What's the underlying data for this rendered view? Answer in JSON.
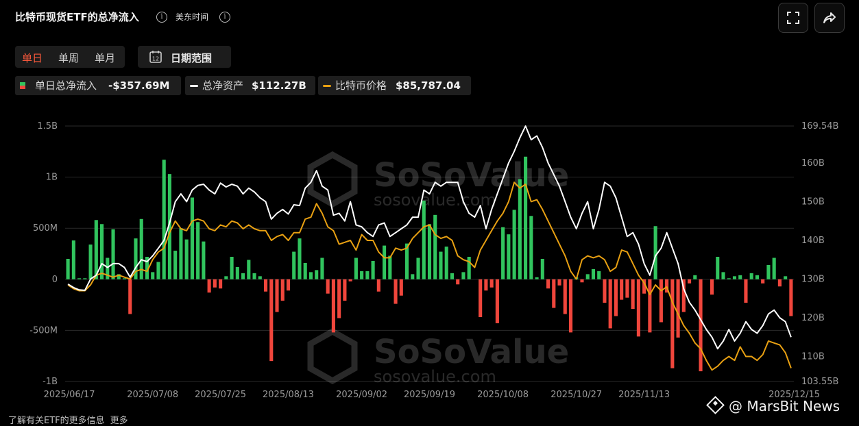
{
  "header": {
    "title": "比特币现货ETF的总净流入",
    "info_icon": "i",
    "timezone": "美东时间",
    "fullscreen_icon": "fullscreen-icon",
    "share_icon": "share-icon"
  },
  "periods": {
    "day": "单日",
    "week": "单周",
    "month": "单月",
    "active": "day"
  },
  "date_range": {
    "label": "日期范围",
    "icon_number": "12"
  },
  "legend": {
    "flow": {
      "name": "单日总净流入",
      "value": "-$357.69M"
    },
    "assets": {
      "name": "总净资产",
      "value": "$112.27B"
    },
    "price": {
      "name": "比特币价格",
      "value": "$85,787.04"
    }
  },
  "colors": {
    "inflow": "#31c45e",
    "outflow": "#f0463c",
    "assets_line": "#ffffff",
    "price_line": "#e8a012",
    "active_period": "#ff5a3c",
    "grid": "#2a2a2a"
  },
  "watermark": {
    "brand": "SoSoValue",
    "url": "sosovalue.com"
  },
  "footer": {
    "text": "了解有关ETF的更多信息",
    "more": "更多"
  },
  "credit": "@ MarsBit News",
  "chart_data": {
    "type": "bar",
    "left_axis": {
      "ticks": [
        1.5,
        1,
        0.5,
        0,
        -0.5,
        -1
      ],
      "tick_labels": [
        "1.5B",
        "1B",
        "500M",
        "0",
        "-500M",
        "-1B"
      ],
      "ylim": [
        -1,
        1.5
      ],
      "unit": "B USD"
    },
    "right_axis": {
      "ticks": [
        169.54,
        160,
        150,
        140,
        130,
        120,
        110,
        103.55
      ],
      "tick_labels": [
        "169.54B",
        "160B",
        "150B",
        "140B",
        "130B",
        "120B",
        "110B",
        "103.55B"
      ],
      "ylim": [
        103.55,
        169.54
      ]
    },
    "x_labels": [
      "2025/06/17",
      "2025/07/08",
      "2025/07/25",
      "2025/08/13",
      "2025/09/02",
      "2025/09/19",
      "2025/10/08",
      "2025/10/27",
      "2025/11/13",
      "2025/12/15"
    ],
    "x_label_index": [
      0,
      15,
      27,
      39,
      52,
      64,
      77,
      90,
      102,
      122
    ],
    "grid": true,
    "series": [
      {
        "name": "单日总净流入",
        "kind": "bar",
        "axis": "left",
        "values": [
          0.2,
          0.38,
          0.01,
          0.01,
          0.34,
          0.58,
          0.54,
          0.21,
          0.49,
          0.05,
          0.01,
          -0.34,
          0.4,
          0.59,
          0.22,
          0.07,
          0.17,
          1.17,
          1.03,
          0.28,
          0.5,
          0.39,
          0.8,
          0.56,
          0.37,
          -0.13,
          -0.08,
          -0.09,
          0.03,
          0.22,
          0.12,
          0.06,
          0.19,
          0.06,
          0.03,
          -0.12,
          -0.8,
          -0.32,
          -0.21,
          -0.11,
          0.27,
          0.4,
          0.16,
          0.07,
          0.09,
          0.21,
          -0.14,
          -0.52,
          -0.38,
          -0.21,
          -0.02,
          0.21,
          0.08,
          0.08,
          0.18,
          -0.12,
          0.33,
          0.23,
          -0.24,
          -0.16,
          0.35,
          0.05,
          0.21,
          0.77,
          0.54,
          0.63,
          0.27,
          0.32,
          0.06,
          -0.05,
          0.07,
          0.22,
          0.0,
          -0.37,
          -0.11,
          -0.08,
          -0.43,
          0.51,
          0.44,
          0.68,
          0.98,
          1.2,
          0.62,
          0.02,
          0.2,
          -0.09,
          -0.28,
          -0.06,
          -0.34,
          -0.52,
          0.02,
          -0.03,
          0.05,
          0.1,
          0.08,
          -0.23,
          -0.48,
          -0.36,
          -0.2,
          -0.18,
          -0.29,
          -0.56,
          -0.14,
          -0.52,
          0.52,
          -0.42,
          -0.13,
          -0.87,
          -0.57,
          -0.32,
          -0.04,
          0.04,
          -0.9,
          0.0,
          -0.15,
          0.22,
          0.07,
          0.01,
          0.03,
          0.04,
          -0.23,
          0.06,
          0.04,
          -0.04,
          0.14,
          0.21,
          -0.07,
          0.03,
          -0.36
        ]
      },
      {
        "name": "总净资产",
        "kind": "line",
        "axis": "right",
        "values": [
          128.7,
          127.8,
          127.2,
          127.1,
          130.0,
          131.0,
          134.0,
          133.0,
          134.0,
          134.0,
          133.0,
          130.5,
          133.0,
          135.0,
          134.5,
          136.0,
          138.0,
          140.0,
          144.5,
          150.0,
          152.0,
          150.0,
          153.0,
          154.2,
          154.5,
          153.0,
          152.0,
          154.8,
          153.8,
          154.5,
          154.0,
          152.0,
          153.5,
          152.5,
          151.0,
          150.0,
          145.5,
          147.0,
          148.0,
          146.8,
          149.2,
          149.0,
          153.5,
          155.0,
          158.0,
          154.0,
          153.0,
          146.5,
          147.0,
          145.0,
          150.0,
          144.0,
          143.5,
          142.0,
          141.0,
          144.0,
          144.5,
          141.0,
          142.0,
          143.0,
          144.0,
          146.0,
          146.0,
          153.0,
          152.0,
          155.0,
          154.0,
          155.0,
          155.0,
          155.0,
          150.0,
          147.0,
          146.0,
          149.0,
          143.0,
          148.0,
          152.0,
          156.0,
          160.0,
          163.0,
          166.5,
          169.54,
          166.0,
          167.0,
          164.0,
          160.0,
          157.0,
          154.0,
          150.0,
          146.0,
          143.0,
          147.0,
          150.0,
          143.0,
          148.0,
          155.0,
          154.0,
          151.0,
          146.0,
          141.0,
          142.0,
          139.0,
          134.0,
          131.0,
          136.0,
          138.0,
          142.0,
          138.0,
          134.0,
          127.5,
          124.0,
          122.0,
          119.5,
          117.0,
          115.0,
          112.0,
          114.0,
          117.0,
          114.0,
          116.0,
          119.0,
          117.0,
          116.0,
          118.0,
          121.0,
          122.0,
          120.0,
          119.0,
          115.0
        ]
      },
      {
        "name": "比特币价格",
        "kind": "line",
        "axis": "right",
        "values": [
          128.5,
          127.5,
          127.0,
          127.0,
          128.5,
          131.0,
          131.5,
          131.0,
          130.5,
          131.0,
          130.5,
          130.0,
          132.0,
          132.5,
          132.0,
          135.0,
          137.0,
          138.0,
          142.0,
          145.0,
          143.0,
          142.5,
          145.0,
          145.5,
          145.0,
          143.0,
          142.5,
          144.0,
          143.5,
          145.0,
          144.5,
          143.0,
          144.0,
          143.0,
          142.5,
          142.5,
          140.0,
          141.0,
          141.5,
          140.0,
          142.0,
          142.0,
          145.5,
          146.0,
          149.5,
          147.0,
          143.5,
          142.5,
          139.0,
          139.5,
          140.0,
          137.5,
          141.5,
          140.0,
          140.0,
          137.0,
          135.5,
          135.5,
          138.0,
          137.5,
          138.0,
          140.5,
          142.0,
          143.5,
          144.0,
          141.5,
          140.5,
          141.0,
          140.0,
          136.0,
          135.0,
          134.5,
          133.0,
          137.5,
          140.0,
          142.5,
          145.0,
          147.0,
          150.0,
          155.0,
          153.5,
          154.5,
          150.0,
          150.5,
          148.0,
          145.0,
          142.0,
          139.0,
          136.0,
          132.0,
          130.0,
          135.0,
          136.0,
          135.5,
          136.0,
          135.0,
          132.0,
          133.0,
          137.5,
          137.0,
          134.0,
          131.0,
          129.0,
          126.0,
          128.5,
          127.0,
          128.0,
          124.0,
          121.0,
          118.0,
          116.0,
          113.5,
          112.0,
          109.0,
          106.5,
          107.5,
          109.0,
          110.0,
          109.0,
          112.5,
          110.0,
          110.0,
          109.0,
          110.5,
          114.0,
          113.5,
          113.0,
          111.0,
          107.0
        ]
      }
    ]
  }
}
